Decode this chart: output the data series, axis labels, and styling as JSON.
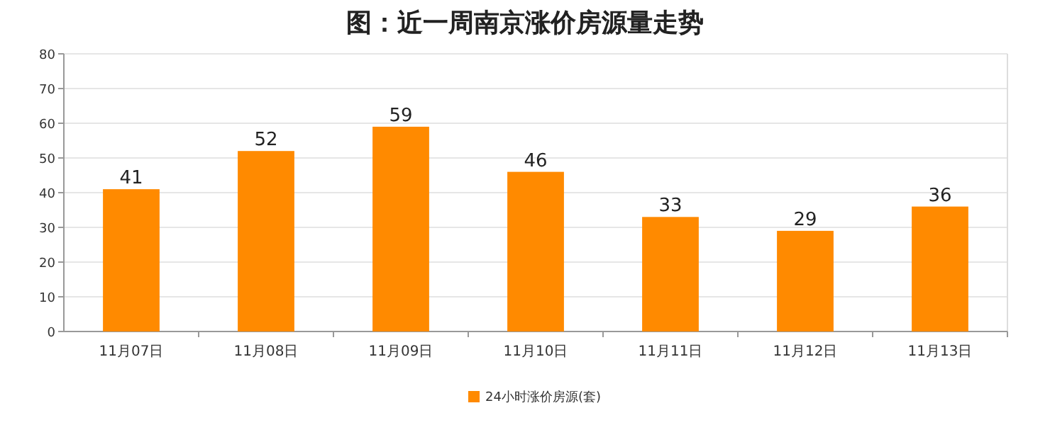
{
  "chart_data": {
    "type": "bar",
    "title": "图：近一周南京涨价房源量走势",
    "categories": [
      "11月07日",
      "11月08日",
      "11月09日",
      "11月10日",
      "11月11日",
      "11月12日",
      "11月13日"
    ],
    "series": [
      {
        "name": "24小时涨价房源(套)",
        "color": "#ff8a00",
        "values": [
          41,
          52,
          59,
          46,
          33,
          29,
          36
        ]
      }
    ],
    "ylim": [
      0,
      80
    ],
    "yticks": [
      0,
      10,
      20,
      30,
      40,
      50,
      60,
      70,
      80
    ],
    "grid": "y",
    "legend": "bottom",
    "data_labels": true
  }
}
